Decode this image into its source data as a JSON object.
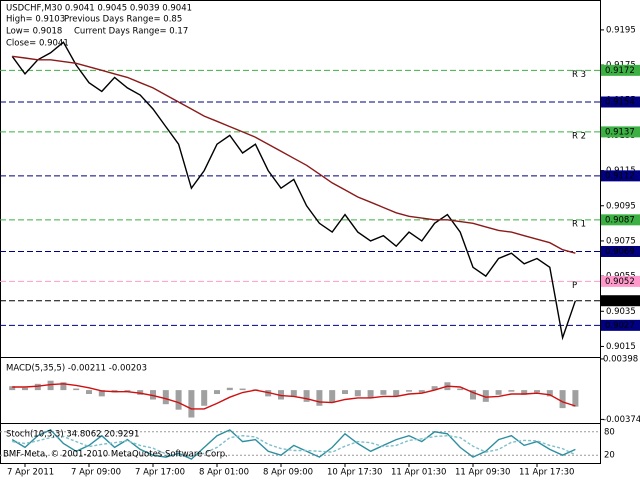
{
  "header": {
    "title": "USDCHF,M30 0.9041 0.9045 0.9039 0.9041",
    "high": "High= 0.9103",
    "prev_range": "Previous Days Range= 0.85",
    "low": "Low= 0.9018",
    "cur_range": "Current Days Range= 0.17",
    "close": "Close= 0.9041"
  },
  "footer": "BMF-Meta, © 2001-2010 MetaQuotes Software Corp.",
  "chart_data": {
    "type": "line",
    "categories": [
      null,
      "7 Apr 2011",
      null,
      null,
      null,
      null,
      "7 Apr 09:00",
      null,
      null,
      null,
      null,
      "7 Apr 17:00",
      null,
      null,
      null,
      null,
      "8 Apr 01:00",
      null,
      null,
      null,
      null,
      "8 Apr 09:00",
      null,
      null,
      null,
      null,
      "10 Apr 17:30",
      null,
      null,
      null,
      null,
      "11 Apr 01:30",
      null,
      null,
      null,
      null,
      "11 Apr 09:30",
      null,
      null,
      null,
      null,
      "11 Apr 17:30",
      null,
      null,
      null
    ],
    "ylim": [
      0.9009,
      0.9212
    ],
    "yticks": [
      0.9195,
      0.9175,
      0.9155,
      0.9135,
      0.9115,
      0.9095,
      0.9075,
      0.9055,
      0.9035,
      0.9015
    ],
    "series": [
      {
        "color": "#000000",
        "values": [
          0.918,
          0.917,
          0.9178,
          0.9182,
          0.9188,
          0.9175,
          0.9165,
          0.916,
          0.9168,
          0.9162,
          0.9158,
          0.915,
          0.914,
          0.913,
          0.9105,
          0.9115,
          0.913,
          0.9135,
          0.9125,
          0.913,
          0.9115,
          0.9105,
          0.911,
          0.9095,
          0.9085,
          0.908,
          0.909,
          0.908,
          0.9075,
          0.9078,
          0.9072,
          0.908,
          0.9075,
          0.9085,
          0.909,
          0.908,
          0.906,
          0.9055,
          0.9065,
          0.9068,
          0.9062,
          0.9065,
          0.906,
          0.902,
          0.9041
        ]
      },
      {
        "color": "#8b1a1a",
        "values": [
          0.918,
          0.9179,
          0.9178,
          0.9178,
          0.9177,
          0.9176,
          0.9174,
          0.9172,
          0.917,
          0.9168,
          0.9165,
          0.9162,
          0.9158,
          0.9154,
          0.915,
          0.9146,
          0.9143,
          0.914,
          0.9137,
          0.9134,
          0.913,
          0.9126,
          0.9122,
          0.9118,
          0.9113,
          0.9108,
          0.9104,
          0.91,
          0.9097,
          0.9094,
          0.9091,
          0.9089,
          0.9088,
          0.9087,
          0.9087,
          0.9086,
          0.9085,
          0.9083,
          0.9081,
          0.908,
          0.9078,
          0.9076,
          0.9074,
          0.907,
          0.9068
        ]
      }
    ],
    "levels": [
      {
        "value": 0.9172,
        "color": "#3cb043",
        "text_color": "#ffffff",
        "tag": "R 3"
      },
      {
        "value": 0.9154,
        "color": "#000080",
        "text_color": "#ffffff"
      },
      {
        "value": 0.9137,
        "color": "#3cb043",
        "text_color": "#ffffff",
        "tag": "R 2"
      },
      {
        "value": 0.9112,
        "color": "#000080",
        "text_color": "#ffffff"
      },
      {
        "value": 0.9087,
        "color": "#3cb043",
        "text_color": "#ffffff",
        "tag": "R 1"
      },
      {
        "value": 0.9069,
        "color": "#000080",
        "text_color": "#ffffff"
      },
      {
        "value": 0.9052,
        "color": "#ff99cc",
        "text_color": "#cc0000",
        "tag": "P"
      },
      {
        "value": 0.9041,
        "color": "#000000",
        "text_color": "#ffffff"
      },
      {
        "value": 0.9027,
        "color": "#000080",
        "text_color": "#ffffff"
      }
    ],
    "macd": {
      "label": "MACD(5,35,5) -0.00211 -0.00203",
      "ylim": [
        -0.0042,
        0.0041
      ],
      "yticks": [
        0.00398,
        -0.00374
      ],
      "histogram": {
        "color": "#a0a0a0",
        "values": [
          0.0005,
          0.0003,
          0.0008,
          0.0012,
          0.001,
          0.0002,
          -0.0005,
          -0.0008,
          -0.0003,
          -0.0002,
          -0.0006,
          -0.0012,
          -0.0018,
          -0.0025,
          -0.0035,
          -0.002,
          -0.0005,
          0.0003,
          0.0002,
          0.0001,
          -0.0008,
          -0.0012,
          -0.0008,
          -0.0015,
          -0.002,
          -0.0016,
          -0.0005,
          -0.0008,
          -0.001,
          -0.0006,
          -0.0008,
          -0.0002,
          -0.0003,
          0.0005,
          0.001,
          0.0002,
          -0.0012,
          -0.0015,
          -0.0006,
          -0.0002,
          -0.0006,
          -0.0003,
          -0.0008,
          -0.0023,
          -0.00211
        ]
      },
      "signal": {
        "color": "#d01010",
        "values": [
          0.0004,
          0.0004,
          0.0005,
          0.0007,
          0.0008,
          0.0006,
          0.0003,
          -0.0001,
          -0.0002,
          -0.0002,
          -0.0004,
          -0.0007,
          -0.0011,
          -0.0016,
          -0.0024,
          -0.0024,
          -0.0017,
          -0.0009,
          -0.0003,
          0,
          -0.0003,
          -0.0007,
          -0.0008,
          -0.0011,
          -0.0015,
          -0.0016,
          -0.0012,
          -0.001,
          -0.001,
          -0.0008,
          -0.0008,
          -0.0005,
          -0.0004,
          0,
          0.0005,
          0.0004,
          -0.0003,
          -0.0009,
          -0.0008,
          -0.0005,
          -0.0005,
          -0.0004,
          -0.0006,
          -0.0015,
          -0.00203
        ]
      }
    },
    "stoch": {
      "label": "Stoch(10,3,3) 34.8062 20.9291",
      "ylim": [
        0,
        100
      ],
      "yticks": [
        80,
        20
      ],
      "main": {
        "color": "#2e8fa0",
        "values": [
          60,
          40,
          70,
          85,
          50,
          30,
          45,
          70,
          40,
          60,
          35,
          20,
          15,
          25,
          10,
          40,
          70,
          85,
          55,
          60,
          30,
          20,
          45,
          30,
          15,
          40,
          75,
          50,
          30,
          45,
          60,
          70,
          55,
          80,
          75,
          40,
          15,
          30,
          60,
          70,
          45,
          55,
          35,
          20,
          34.8062
        ]
      },
      "signal": {
        "color": "#7fbfca",
        "values": [
          55,
          50,
          57,
          65,
          68,
          55,
          42,
          48,
          52,
          57,
          45,
          38,
          23,
          20,
          17,
          25,
          40,
          65,
          70,
          67,
          48,
          37,
          32,
          32,
          30,
          28,
          43,
          55,
          52,
          42,
          45,
          58,
          62,
          68,
          70,
          65,
          43,
          28,
          35,
          53,
          58,
          57,
          45,
          37,
          20.9291
        ]
      }
    }
  }
}
